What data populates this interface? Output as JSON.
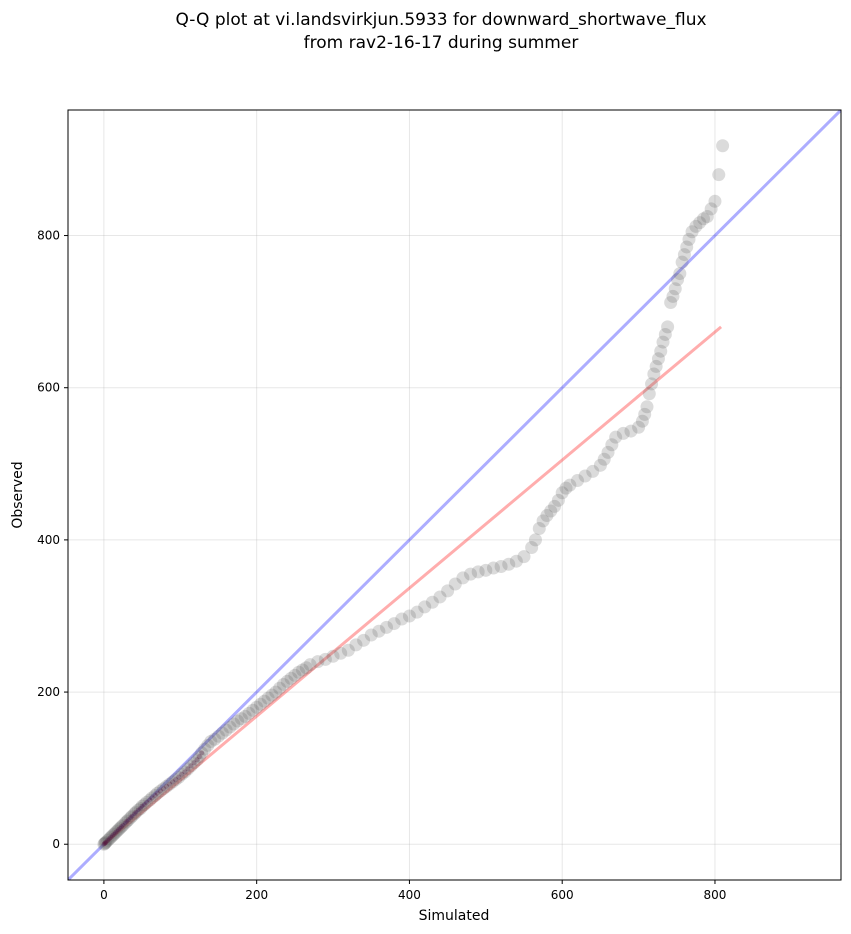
{
  "chart_data": {
    "type": "scatter",
    "title": "Q-Q plot at vi.landsvirkjun.5933 for downward_shortwave_flux",
    "subtitle": "from rav2-16-17 during summer",
    "xlabel": "Simulated",
    "ylabel": "Observed",
    "xlim": [
      -47,
      965
    ],
    "ylim": [
      -47,
      965
    ],
    "xticks": [
      0,
      200,
      400,
      600,
      800
    ],
    "yticks": [
      0,
      200,
      400,
      600,
      800
    ],
    "grid": true,
    "reference_line": {
      "description": "1:1 line",
      "color": "#0000ff",
      "points": [
        [
          -47,
          -47
        ],
        [
          965,
          965
        ]
      ]
    },
    "fit_line": {
      "description": "linear fit",
      "color": "#ff0000",
      "points": [
        [
          0,
          0
        ],
        [
          808,
          680
        ]
      ]
    },
    "points": [
      [
        0,
        0
      ],
      [
        1,
        1
      ],
      [
        2,
        2
      ],
      [
        3,
        3
      ],
      [
        5,
        5
      ],
      [
        7,
        7
      ],
      [
        9,
        9
      ],
      [
        11,
        11
      ],
      [
        13,
        13
      ],
      [
        15,
        15
      ],
      [
        17,
        17
      ],
      [
        19,
        19
      ],
      [
        21,
        21
      ],
      [
        23,
        23
      ],
      [
        25,
        25
      ],
      [
        28,
        28
      ],
      [
        30,
        30
      ],
      [
        32,
        32
      ],
      [
        35,
        35
      ],
      [
        37,
        37
      ],
      [
        40,
        40
      ],
      [
        42,
        42
      ],
      [
        45,
        45
      ],
      [
        48,
        47
      ],
      [
        50,
        50
      ],
      [
        53,
        52
      ],
      [
        56,
        55
      ],
      [
        60,
        58
      ],
      [
        63,
        61
      ],
      [
        67,
        64
      ],
      [
        70,
        67
      ],
      [
        74,
        70
      ],
      [
        78,
        73
      ],
      [
        82,
        76
      ],
      [
        86,
        79
      ],
      [
        90,
        82
      ],
      [
        94,
        85
      ],
      [
        98,
        88
      ],
      [
        102,
        92
      ],
      [
        106,
        95
      ],
      [
        110,
        99
      ],
      [
        114,
        103
      ],
      [
        118,
        107
      ],
      [
        122,
        111
      ],
      [
        125,
        115
      ],
      [
        128,
        120
      ],
      [
        132,
        125
      ],
      [
        136,
        130
      ],
      [
        140,
        135
      ],
      [
        145,
        138
      ],
      [
        150,
        142
      ],
      [
        155,
        146
      ],
      [
        160,
        150
      ],
      [
        165,
        154
      ],
      [
        170,
        158
      ],
      [
        175,
        162
      ],
      [
        180,
        165
      ],
      [
        185,
        168
      ],
      [
        190,
        172
      ],
      [
        195,
        176
      ],
      [
        200,
        180
      ],
      [
        205,
        184
      ],
      [
        210,
        188
      ],
      [
        215,
        192
      ],
      [
        220,
        196
      ],
      [
        225,
        200
      ],
      [
        230,
        205
      ],
      [
        235,
        210
      ],
      [
        240,
        214
      ],
      [
        245,
        218
      ],
      [
        250,
        222
      ],
      [
        255,
        226
      ],
      [
        260,
        229
      ],
      [
        265,
        232
      ],
      [
        270,
        236
      ],
      [
        280,
        240
      ],
      [
        290,
        243
      ],
      [
        300,
        247
      ],
      [
        310,
        251
      ],
      [
        320,
        255
      ],
      [
        330,
        262
      ],
      [
        340,
        268
      ],
      [
        350,
        275
      ],
      [
        360,
        280
      ],
      [
        370,
        285
      ],
      [
        380,
        290
      ],
      [
        390,
        296
      ],
      [
        400,
        300
      ],
      [
        410,
        305
      ],
      [
        420,
        312
      ],
      [
        430,
        318
      ],
      [
        440,
        325
      ],
      [
        450,
        333
      ],
      [
        460,
        342
      ],
      [
        470,
        350
      ],
      [
        480,
        355
      ],
      [
        490,
        358
      ],
      [
        500,
        360
      ],
      [
        510,
        363
      ],
      [
        520,
        365
      ],
      [
        530,
        368
      ],
      [
        540,
        372
      ],
      [
        550,
        378
      ],
      [
        560,
        390
      ],
      [
        565,
        400
      ],
      [
        570,
        415
      ],
      [
        575,
        425
      ],
      [
        580,
        432
      ],
      [
        585,
        438
      ],
      [
        590,
        444
      ],
      [
        595,
        452
      ],
      [
        600,
        462
      ],
      [
        605,
        468
      ],
      [
        610,
        472
      ],
      [
        620,
        478
      ],
      [
        630,
        484
      ],
      [
        640,
        490
      ],
      [
        650,
        498
      ],
      [
        655,
        506
      ],
      [
        660,
        515
      ],
      [
        665,
        525
      ],
      [
        670,
        535
      ],
      [
        680,
        540
      ],
      [
        690,
        543
      ],
      [
        700,
        548
      ],
      [
        705,
        556
      ],
      [
        708,
        565
      ],
      [
        711,
        575
      ],
      [
        714,
        592
      ],
      [
        717,
        605
      ],
      [
        720,
        618
      ],
      [
        723,
        628
      ],
      [
        726,
        638
      ],
      [
        729,
        648
      ],
      [
        732,
        660
      ],
      [
        735,
        670
      ],
      [
        738,
        680
      ],
      [
        742,
        712
      ],
      [
        745,
        720
      ],
      [
        748,
        730
      ],
      [
        751,
        742
      ],
      [
        754,
        750
      ],
      [
        757,
        765
      ],
      [
        760,
        775
      ],
      [
        763,
        785
      ],
      [
        766,
        795
      ],
      [
        770,
        805
      ],
      [
        775,
        812
      ],
      [
        780,
        817
      ],
      [
        785,
        822
      ],
      [
        790,
        825
      ],
      [
        795,
        835
      ],
      [
        800,
        845
      ],
      [
        805,
        880
      ],
      [
        810,
        918
      ]
    ]
  }
}
